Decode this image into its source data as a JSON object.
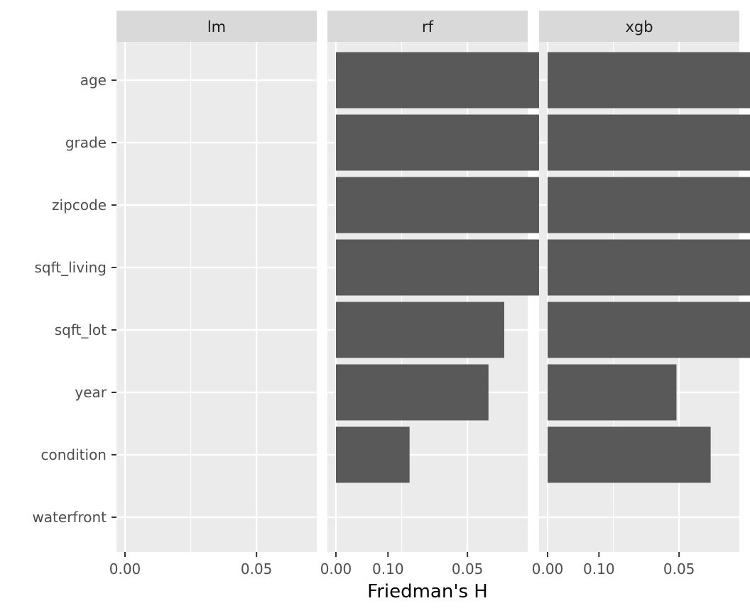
{
  "chart_data": {
    "type": "bar",
    "orientation": "horizontal",
    "facet": true,
    "xlabel": "Friedman's H",
    "ylabel": "",
    "xlim": [
      0,
      0.14
    ],
    "x_ticks": [
      0.0,
      0.05,
      0.1
    ],
    "x_tick_labels": [
      "0.00",
      "0.05",
      "0.10"
    ],
    "categories": [
      "age",
      "grade",
      "zipcode",
      "sqft_living",
      "sqft_lot",
      "year",
      "condition",
      "waterfront"
    ],
    "panels": [
      {
        "name": "lm",
        "values": [
          0,
          0,
          0,
          0,
          0,
          0,
          0,
          0
        ]
      },
      {
        "name": "rf",
        "values": [
          0.139,
          0.126,
          0.098,
          0.097,
          0.064,
          0.058,
          0.028,
          0
        ]
      },
      {
        "name": "xgb",
        "values": [
          0.134,
          0.099,
          0.125,
          0.09,
          0.087,
          0.049,
          0.062,
          0
        ]
      }
    ],
    "grid": true,
    "colors": {
      "bar": "#595959",
      "panel_background": "#ebebeb",
      "strip_background": "#d9d9d9",
      "grid": "#ffffff",
      "tick": "#333333",
      "text": "#4d4d4d"
    }
  }
}
